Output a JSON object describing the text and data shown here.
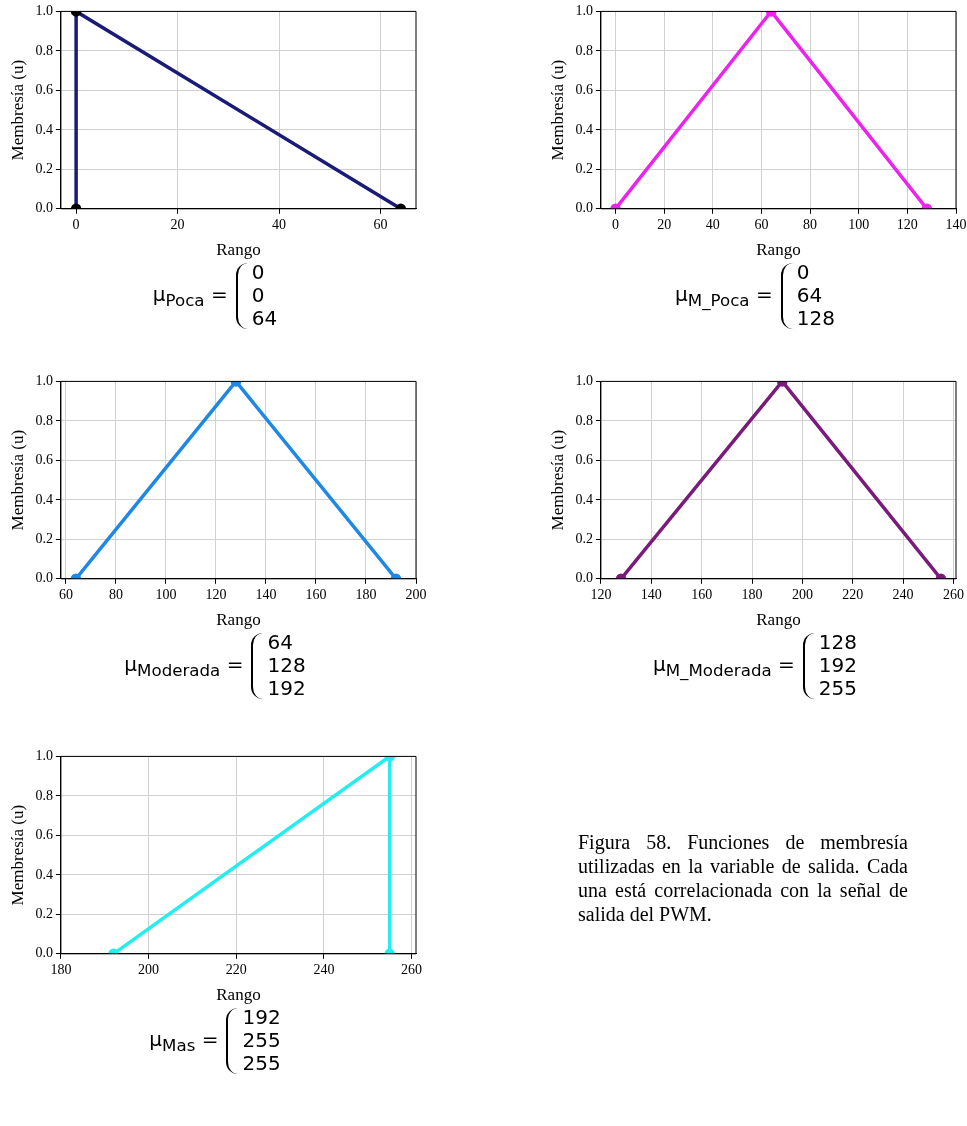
{
  "chart_data": [
    {
      "type": "line",
      "xlabel": "Rango",
      "ylabel": "Membresía (u)",
      "xlim": [
        -3,
        67
      ],
      "xticks": [
        0,
        20,
        40,
        60
      ],
      "ylim": [
        0,
        1
      ],
      "yticks": [
        {
          "value": 0,
          "label": "0.0"
        },
        {
          "value": 0.2,
          "label": "0.2"
        },
        {
          "value": 0.4,
          "label": "0.4"
        },
        {
          "value": 0.6,
          "label": "0.6"
        },
        {
          "value": 0.8,
          "label": "0.8"
        },
        {
          "value": 1,
          "label": "1.0"
        }
      ],
      "grid": true,
      "marker": "circle",
      "line_style": "solid",
      "series": [
        {
          "color": "#1a1a78",
          "x": [
            0,
            0,
            64
          ],
          "values": [
            0,
            1,
            0
          ]
        }
      ],
      "annotations": [
        "μ$_{Poca}$ =",
        "0",
        "0",
        "64"
      ]
    },
    {
      "type": "line",
      "xlabel": "Rango",
      "ylabel": "Membresía (u)",
      "xlim": [
        -6,
        140
      ],
      "xticks": [
        0,
        20,
        40,
        60,
        80,
        100,
        120,
        140
      ],
      "ylim": [
        0,
        1
      ],
      "yticks": [
        {
          "value": 0,
          "label": "0.0"
        },
        {
          "value": 0.2,
          "label": "0.2"
        },
        {
          "value": 0.4,
          "label": "0.4"
        },
        {
          "value": 0.6,
          "label": "0.6"
        },
        {
          "value": 0.8,
          "label": "0.8"
        },
        {
          "value": 1,
          "label": "1.0"
        }
      ],
      "grid": true,
      "marker": "circle",
      "line_style": "solid",
      "series": [
        {
          "color": "#ee22ee",
          "x": [
            0,
            64,
            128
          ],
          "values": [
            0,
            1,
            0
          ]
        }
      ],
      "annotations": [
        "μ$_{M_Poca}$ =",
        "0",
        "64",
        "128"
      ]
    },
    {
      "type": "line",
      "xlabel": "Rango",
      "ylabel": "Membresía (u)",
      "xlim": [
        58,
        200
      ],
      "xticks": [
        60,
        80,
        100,
        120,
        140,
        160,
        180,
        200
      ],
      "ylim": [
        0,
        1
      ],
      "yticks": [
        {
          "value": 0,
          "label": "0.0"
        },
        {
          "value": 0.2,
          "label": "0.2"
        },
        {
          "value": 0.4,
          "label": "0.4"
        },
        {
          "value": 0.6,
          "label": "0.6"
        },
        {
          "value": 0.8,
          "label": "0.8"
        },
        {
          "value": 1,
          "label": "1.0"
        }
      ],
      "grid": true,
      "marker": "circle",
      "line_style": "solid",
      "series": [
        {
          "color": "#1e88e5",
          "x": [
            64,
            128,
            192
          ],
          "values": [
            0,
            1,
            0
          ]
        }
      ],
      "annotations": [
        "μ$_{Moderada}$ =",
        "64",
        "128",
        "192"
      ]
    },
    {
      "type": "line",
      "xlabel": "Rango",
      "ylabel": "Membresía (u)",
      "xlim": [
        120,
        261
      ],
      "xticks": [
        120,
        140,
        160,
        180,
        200,
        220,
        240,
        260
      ],
      "ylim": [
        0,
        1
      ],
      "yticks": [
        {
          "value": 0,
          "label": "0.0"
        },
        {
          "value": 0.2,
          "label": "0.2"
        },
        {
          "value": 0.4,
          "label": "0.4"
        },
        {
          "value": 0.6,
          "label": "0.6"
        },
        {
          "value": 0.8,
          "label": "0.8"
        },
        {
          "value": 1,
          "label": "1.0"
        }
      ],
      "grid": true,
      "marker": "circle",
      "line_style": "solid",
      "series": [
        {
          "color": "#7a1a7a",
          "x": [
            128,
            192,
            255
          ],
          "values": [
            0,
            1,
            0
          ]
        }
      ],
      "annotations": [
        "μ$_{M_Moderada}$ =",
        "128",
        "192",
        "255"
      ]
    },
    {
      "type": "line",
      "xlabel": "Rango",
      "ylabel": "Membresía (u)",
      "xlim": [
        180,
        261
      ],
      "xticks": [
        180,
        200,
        220,
        240,
        260
      ],
      "ylim": [
        0,
        1
      ],
      "yticks": [
        {
          "value": 0,
          "label": "0.0"
        },
        {
          "value": 0.2,
          "label": "0.2"
        },
        {
          "value": 0.4,
          "label": "0.4"
        },
        {
          "value": 0.6,
          "label": "0.6"
        },
        {
          "value": 0.8,
          "label": "0.8"
        },
        {
          "value": 1,
          "label": "1.0"
        }
      ],
      "grid": true,
      "marker": "circle",
      "line_style": "solid",
      "series": [
        {
          "color": "#22eeee",
          "x": [
            192,
            255,
            255
          ],
          "values": [
            0,
            1,
            0
          ]
        }
      ],
      "annotations": [
        "μ$_{Mas}$ =",
        "192",
        "255",
        "255"
      ]
    },
    {
      "type": "other",
      "annotations": [
        "Figura 58. Funciones de membresía utilizadas en la variable de salida. Cada una está correlacionada con la señal de salida del PWM."
      ]
    }
  ]
}
